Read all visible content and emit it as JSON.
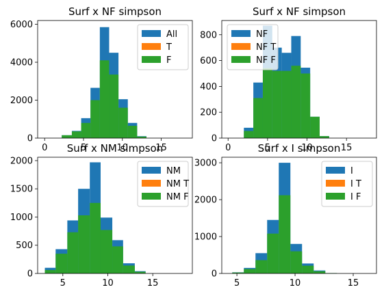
{
  "chart_data": [
    {
      "type": "bar",
      "title": "Surf x NF simpson",
      "xlim": [
        -0.9,
        19.0
      ],
      "ylim": [
        0,
        6200
      ],
      "xticks": [
        0,
        5,
        10,
        15
      ],
      "yticks": [
        0,
        2000,
        4000,
        6000
      ],
      "legend_position": "top-right",
      "series": [
        {
          "name": "All",
          "color": "#1f77b4",
          "bins": [
            [
              2.2,
              3.5,
              150
            ],
            [
              3.5,
              4.7,
              380
            ],
            [
              4.7,
              5.9,
              1050
            ],
            [
              5.9,
              7.1,
              2650
            ],
            [
              7.1,
              8.3,
              5850
            ],
            [
              8.3,
              9.5,
              4500
            ],
            [
              9.5,
              10.7,
              2050
            ],
            [
              10.7,
              11.9,
              800
            ],
            [
              11.9,
              13.1,
              100
            ]
          ]
        },
        {
          "name": "T",
          "color": "#ff7f0e",
          "bins": []
        },
        {
          "name": "F",
          "color": "#2ca02c",
          "bins": [
            [
              2.2,
              3.5,
              150
            ],
            [
              3.5,
              4.7,
              350
            ],
            [
              4.7,
              5.9,
              800
            ],
            [
              5.9,
              7.1,
              2000
            ],
            [
              7.1,
              8.3,
              4100
            ],
            [
              8.3,
              9.5,
              3350
            ],
            [
              9.5,
              10.7,
              1600
            ],
            [
              10.7,
              11.9,
              650
            ],
            [
              11.9,
              13.1,
              80
            ]
          ]
        }
      ]
    },
    {
      "type": "bar",
      "title": "Surf x NF simpson",
      "xlim": [
        -0.8,
        18.8
      ],
      "ylim": [
        0,
        910
      ],
      "xticks": [
        0,
        5,
        10,
        15
      ],
      "yticks": [
        0,
        200,
        400,
        600,
        800
      ],
      "legend_position": "top-left",
      "series": [
        {
          "name": "NF",
          "color": "#1f77b4",
          "bins": [
            [
              2.0,
              3.2,
              80
            ],
            [
              3.2,
              4.4,
              430
            ],
            [
              4.4,
              5.6,
              870
            ],
            [
              5.6,
              6.8,
              700
            ],
            [
              6.8,
              8.0,
              660
            ],
            [
              8.0,
              9.2,
              790
            ],
            [
              9.2,
              10.4,
              545
            ],
            [
              10.4,
              11.6,
              165
            ],
            [
              11.6,
              12.8,
              15
            ]
          ]
        },
        {
          "name": "NF T",
          "color": "#ff7f0e",
          "bins": []
        },
        {
          "name": "NF F",
          "color": "#2ca02c",
          "bins": [
            [
              2.0,
              3.2,
              55
            ],
            [
              3.2,
              4.4,
              310
            ],
            [
              4.4,
              5.6,
              540
            ],
            [
              5.6,
              6.8,
              520
            ],
            [
              6.8,
              8.0,
              520
            ],
            [
              8.0,
              9.2,
              560
            ],
            [
              9.2,
              10.4,
              500
            ],
            [
              10.4,
              11.6,
              165
            ],
            [
              11.6,
              12.8,
              15
            ]
          ]
        }
      ]
    },
    {
      "type": "bar",
      "title": "Surf x NM simpson",
      "xlim": [
        2.2,
        19.4
      ],
      "ylim": [
        0,
        2060
      ],
      "xticks": [
        5,
        10,
        15
      ],
      "yticks": [
        0,
        500,
        1000,
        1500,
        2000
      ],
      "legend_position": "top-right",
      "series": [
        {
          "name": "NM",
          "color": "#1f77b4",
          "bins": [
            [
              3.0,
              4.2,
              100
            ],
            [
              4.2,
              5.5,
              430
            ],
            [
              5.5,
              6.7,
              940
            ],
            [
              6.7,
              8.0,
              1500
            ],
            [
              8.0,
              9.2,
              1970
            ],
            [
              9.2,
              10.5,
              990
            ],
            [
              10.5,
              11.7,
              590
            ],
            [
              11.7,
              13.0,
              180
            ],
            [
              13.0,
              14.2,
              40
            ]
          ]
        },
        {
          "name": "NM T",
          "color": "#ff7f0e",
          "bins": []
        },
        {
          "name": "NM F",
          "color": "#2ca02c",
          "bins": [
            [
              3.0,
              4.2,
              60
            ],
            [
              4.2,
              5.5,
              350
            ],
            [
              5.5,
              6.7,
              730
            ],
            [
              6.7,
              8.0,
              1030
            ],
            [
              8.0,
              9.2,
              1250
            ],
            [
              9.2,
              10.5,
              770
            ],
            [
              10.5,
              11.7,
              480
            ],
            [
              11.7,
              13.0,
              140
            ],
            [
              13.0,
              14.2,
              30
            ]
          ]
        }
      ]
    },
    {
      "type": "bar",
      "title": "Surf x I simpson",
      "xlim": [
        3.7,
        17.0
      ],
      "ylim": [
        0,
        3150
      ],
      "xticks": [
        5,
        10,
        15
      ],
      "yticks": [
        0,
        1000,
        2000,
        3000
      ],
      "legend_position": "top-right",
      "series": [
        {
          "name": "I",
          "color": "#1f77b4",
          "bins": [
            [
              4.6,
              5.6,
              30
            ],
            [
              5.6,
              6.6,
              150
            ],
            [
              6.6,
              7.6,
              550
            ],
            [
              7.6,
              8.6,
              1450
            ],
            [
              8.6,
              9.6,
              3000
            ],
            [
              9.6,
              10.6,
              800
            ],
            [
              10.6,
              11.6,
              270
            ],
            [
              11.6,
              12.6,
              80
            ],
            [
              12.6,
              13.6,
              10
            ]
          ]
        },
        {
          "name": "I T",
          "color": "#ff7f0e",
          "bins": []
        },
        {
          "name": "I F",
          "color": "#2ca02c",
          "bins": [
            [
              4.6,
              5.6,
              25
            ],
            [
              5.6,
              6.6,
              120
            ],
            [
              6.6,
              7.6,
              360
            ],
            [
              7.6,
              8.6,
              1080
            ],
            [
              8.6,
              9.6,
              2120
            ],
            [
              9.6,
              10.6,
              600
            ],
            [
              10.6,
              11.6,
              210
            ],
            [
              11.6,
              12.6,
              60
            ],
            [
              12.6,
              13.6,
              10
            ]
          ]
        }
      ]
    }
  ]
}
